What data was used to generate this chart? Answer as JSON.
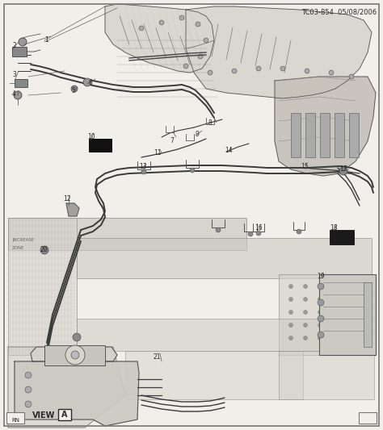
{
  "title": "TC03-854  05/08/2006",
  "background_color": "#f2efea",
  "border_color": "#777777",
  "text_color": "#2a2a2a",
  "fig_width": 4.74,
  "fig_height": 5.33,
  "dpi": 100,
  "corner_label_bl": "RN",
  "view_label": "VIEW",
  "view_circle_label": "A",
  "line_color": "#3a3a3a",
  "gray_fill": "#c8c5bf",
  "dark_fill": "#888880"
}
